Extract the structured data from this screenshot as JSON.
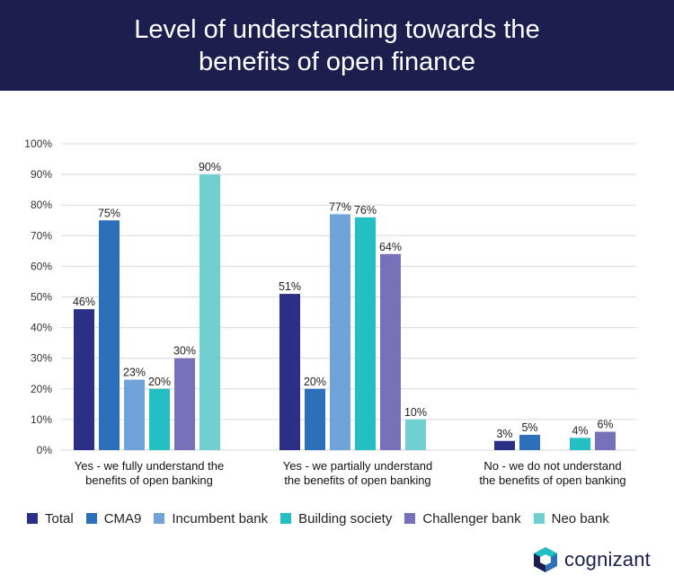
{
  "header": {
    "title": "Level of understanding towards the benefits of open finance"
  },
  "brand": {
    "name": "cognizant",
    "icon": "cognizant-logo-icon"
  },
  "colors": {
    "header_bg": "#1c1f4e",
    "grid": "#d9d9d9",
    "series": [
      "#2b2f86",
      "#2e6fba",
      "#6fa3d9",
      "#23bfc3",
      "#7671b8",
      "#6fcfd1"
    ]
  },
  "chart_data": {
    "type": "bar",
    "ylim": [
      0,
      100
    ],
    "yticks": [
      "0%",
      "10%",
      "20%",
      "30%",
      "40%",
      "50%",
      "60%",
      "70%",
      "80%",
      "90%",
      "100%"
    ],
    "grid": true,
    "legend_position": "bottom",
    "categories": [
      [
        "Yes - we fully understand the",
        "benefits of open banking"
      ],
      [
        "Yes - we partially understand",
        "the benefits of open banking"
      ],
      [
        "No - we do not understand",
        "the benefits of open banking"
      ]
    ],
    "series": [
      {
        "name": "Total",
        "values": [
          46,
          51,
          3
        ]
      },
      {
        "name": "CMA9",
        "values": [
          75,
          20,
          5
        ]
      },
      {
        "name": "Incumbent bank",
        "values": [
          23,
          77,
          null
        ]
      },
      {
        "name": "Building society",
        "values": [
          20,
          76,
          4
        ]
      },
      {
        "name": "Challenger bank",
        "values": [
          30,
          64,
          6
        ]
      },
      {
        "name": "Neo bank",
        "values": [
          90,
          10,
          null
        ]
      }
    ]
  }
}
